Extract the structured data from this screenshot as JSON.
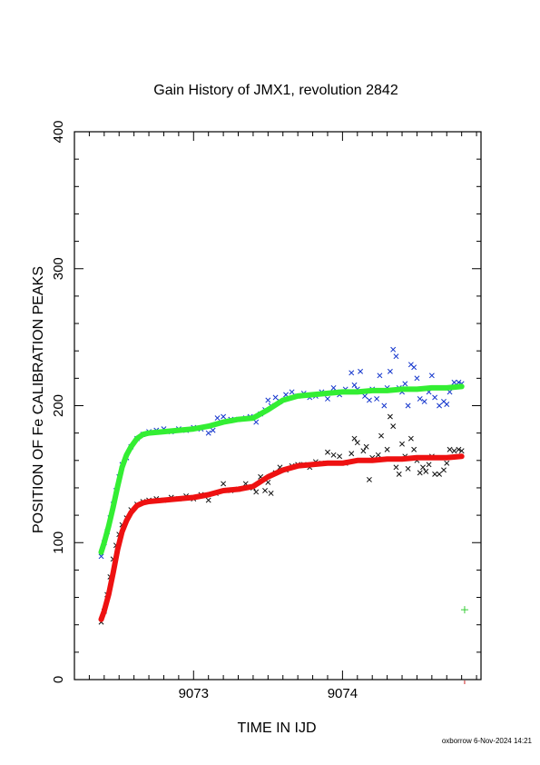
{
  "chart_data": {
    "type": "scatter",
    "title": "Gain History of JMX1, revolution 2842",
    "xlabel": "TIME IN IJD",
    "ylabel": "POSITION OF Fe CALIBRATION PEAKS",
    "footer": "oxborrow  6-Nov-2024 14:21",
    "xlim": [
      9072.2,
      9074.93
    ],
    "ylim": [
      0,
      400
    ],
    "x_ticks": [
      9073,
      9074
    ],
    "y_ticks": [
      0,
      100,
      200,
      300,
      400
    ],
    "colors": {
      "upper_fit": "#33ee33",
      "lower_fit": "#ee1111",
      "upper_points": "#1133cc",
      "lower_points": "#111111",
      "marker": "#33cc33",
      "tick_mark": "#cc2222"
    },
    "series": [
      {
        "role": "upper_points",
        "marker": "x",
        "points": [
          [
            9072.38,
            90
          ],
          [
            9072.4,
            100
          ],
          [
            9072.42,
            108
          ],
          [
            9072.44,
            118
          ],
          [
            9072.46,
            128
          ],
          [
            9072.48,
            138
          ],
          [
            9072.5,
            148
          ],
          [
            9072.52,
            157
          ],
          [
            9072.55,
            162
          ],
          [
            9072.58,
            170
          ],
          [
            9072.62,
            176
          ],
          [
            9072.66,
            179
          ],
          [
            9072.7,
            181
          ],
          [
            9072.75,
            182
          ],
          [
            9072.8,
            183
          ],
          [
            9072.85,
            181
          ],
          [
            9072.9,
            183
          ],
          [
            9072.95,
            182
          ],
          [
            9073.0,
            184
          ],
          [
            9073.05,
            183
          ],
          [
            9073.1,
            180
          ],
          [
            9073.13,
            182
          ],
          [
            9073.16,
            191
          ],
          [
            9073.2,
            192
          ],
          [
            9073.25,
            190
          ],
          [
            9073.3,
            190
          ],
          [
            9073.35,
            191
          ],
          [
            9073.38,
            192
          ],
          [
            9073.42,
            188
          ],
          [
            9073.45,
            194
          ],
          [
            9073.48,
            197
          ],
          [
            9073.5,
            204
          ],
          [
            9073.52,
            200
          ],
          [
            9073.55,
            206
          ],
          [
            9073.58,
            203
          ],
          [
            9073.62,
            208
          ],
          [
            9073.66,
            210
          ],
          [
            9073.7,
            207
          ],
          [
            9073.74,
            209
          ],
          [
            9073.78,
            206
          ],
          [
            9073.82,
            207
          ],
          [
            9073.86,
            210
          ],
          [
            9073.9,
            205
          ],
          [
            9073.94,
            213
          ],
          [
            9073.96,
            210
          ],
          [
            9073.98,
            208
          ],
          [
            9074.02,
            212
          ],
          [
            9074.06,
            224
          ],
          [
            9074.08,
            215
          ],
          [
            9074.1,
            212
          ],
          [
            9074.12,
            225
          ],
          [
            9074.15,
            207
          ],
          [
            9074.18,
            204
          ],
          [
            9074.2,
            212
          ],
          [
            9074.23,
            205
          ],
          [
            9074.25,
            222
          ],
          [
            9074.28,
            200
          ],
          [
            9074.3,
            213
          ],
          [
            9074.32,
            225
          ],
          [
            9074.34,
            241
          ],
          [
            9074.36,
            236
          ],
          [
            9074.38,
            213
          ],
          [
            9074.4,
            210
          ],
          [
            9074.42,
            216
          ],
          [
            9074.44,
            200
          ],
          [
            9074.46,
            230
          ],
          [
            9074.48,
            228
          ],
          [
            9074.5,
            220
          ],
          [
            9074.52,
            205
          ],
          [
            9074.55,
            203
          ],
          [
            9074.58,
            210
          ],
          [
            9074.6,
            222
          ],
          [
            9074.62,
            206
          ],
          [
            9074.65,
            200
          ],
          [
            9074.68,
            203
          ],
          [
            9074.7,
            201
          ],
          [
            9074.72,
            210
          ],
          [
            9074.75,
            217
          ],
          [
            9074.78,
            217
          ],
          [
            9074.8,
            216
          ]
        ]
      },
      {
        "role": "lower_points",
        "marker": "x",
        "points": [
          [
            9072.38,
            42
          ],
          [
            9072.4,
            50
          ],
          [
            9072.42,
            62
          ],
          [
            9072.44,
            75
          ],
          [
            9072.46,
            88
          ],
          [
            9072.48,
            98
          ],
          [
            9072.5,
            106
          ],
          [
            9072.52,
            113
          ],
          [
            9072.55,
            118
          ],
          [
            9072.58,
            124
          ],
          [
            9072.62,
            128
          ],
          [
            9072.66,
            130
          ],
          [
            9072.7,
            131
          ],
          [
            9072.75,
            132
          ],
          [
            9072.8,
            131
          ],
          [
            9072.85,
            133
          ],
          [
            9072.9,
            132
          ],
          [
            9072.95,
            134
          ],
          [
            9073.0,
            132
          ],
          [
            9073.05,
            135
          ],
          [
            9073.1,
            131
          ],
          [
            9073.15,
            136
          ],
          [
            9073.2,
            143
          ],
          [
            9073.25,
            138
          ],
          [
            9073.3,
            139
          ],
          [
            9073.35,
            143
          ],
          [
            9073.4,
            140
          ],
          [
            9073.42,
            137
          ],
          [
            9073.45,
            148
          ],
          [
            9073.48,
            138
          ],
          [
            9073.5,
            144
          ],
          [
            9073.52,
            136
          ],
          [
            9073.55,
            151
          ],
          [
            9073.58,
            155
          ],
          [
            9073.62,
            153
          ],
          [
            9073.66,
            156
          ],
          [
            9073.7,
            157
          ],
          [
            9073.74,
            157
          ],
          [
            9073.78,
            155
          ],
          [
            9073.82,
            159
          ],
          [
            9073.86,
            158
          ],
          [
            9073.9,
            166
          ],
          [
            9073.94,
            164
          ],
          [
            9073.98,
            163
          ],
          [
            9074.02,
            158
          ],
          [
            9074.06,
            165
          ],
          [
            9074.08,
            176
          ],
          [
            9074.1,
            173
          ],
          [
            9074.14,
            167
          ],
          [
            9074.16,
            170
          ],
          [
            9074.18,
            146
          ],
          [
            9074.2,
            162
          ],
          [
            9074.24,
            164
          ],
          [
            9074.26,
            178
          ],
          [
            9074.3,
            168
          ],
          [
            9074.32,
            192
          ],
          [
            9074.34,
            185
          ],
          [
            9074.36,
            155
          ],
          [
            9074.38,
            150
          ],
          [
            9074.4,
            172
          ],
          [
            9074.42,
            163
          ],
          [
            9074.44,
            154
          ],
          [
            9074.46,
            176
          ],
          [
            9074.48,
            168
          ],
          [
            9074.5,
            160
          ],
          [
            9074.52,
            151
          ],
          [
            9074.54,
            155
          ],
          [
            9074.56,
            152
          ],
          [
            9074.58,
            157
          ],
          [
            9074.6,
            163
          ],
          [
            9074.62,
            150
          ],
          [
            9074.65,
            150
          ],
          [
            9074.68,
            153
          ],
          [
            9074.7,
            158
          ],
          [
            9074.72,
            168
          ],
          [
            9074.75,
            167
          ],
          [
            9074.78,
            168
          ],
          [
            9074.8,
            167
          ]
        ]
      },
      {
        "role": "upper_fit",
        "line": true,
        "points": [
          [
            9072.38,
            93
          ],
          [
            9072.4,
            100
          ],
          [
            9072.43,
            112
          ],
          [
            9072.46,
            126
          ],
          [
            9072.49,
            141
          ],
          [
            9072.52,
            155
          ],
          [
            9072.55,
            164
          ],
          [
            9072.58,
            170
          ],
          [
            9072.62,
            176
          ],
          [
            9072.66,
            179
          ],
          [
            9072.7,
            180
          ],
          [
            9072.8,
            181
          ],
          [
            9072.9,
            182
          ],
          [
            9073.0,
            183
          ],
          [
            9073.1,
            185
          ],
          [
            9073.2,
            188
          ],
          [
            9073.3,
            190
          ],
          [
            9073.4,
            191
          ],
          [
            9073.5,
            197
          ],
          [
            9073.6,
            204
          ],
          [
            9073.7,
            207
          ],
          [
            9073.8,
            208
          ],
          [
            9073.9,
            209
          ],
          [
            9074.0,
            210
          ],
          [
            9074.1,
            210
          ],
          [
            9074.2,
            211
          ],
          [
            9074.3,
            211
          ],
          [
            9074.4,
            212
          ],
          [
            9074.5,
            212
          ],
          [
            9074.6,
            213
          ],
          [
            9074.7,
            213
          ],
          [
            9074.8,
            214
          ]
        ]
      },
      {
        "role": "lower_fit",
        "line": true,
        "points": [
          [
            9072.38,
            44
          ],
          [
            9072.4,
            50
          ],
          [
            9072.43,
            62
          ],
          [
            9072.46,
            78
          ],
          [
            9072.49,
            95
          ],
          [
            9072.52,
            108
          ],
          [
            9072.55,
            116
          ],
          [
            9072.58,
            122
          ],
          [
            9072.62,
            127
          ],
          [
            9072.66,
            129
          ],
          [
            9072.7,
            130
          ],
          [
            9072.8,
            131
          ],
          [
            9072.9,
            132
          ],
          [
            9073.0,
            133
          ],
          [
            9073.1,
            135
          ],
          [
            9073.2,
            138
          ],
          [
            9073.3,
            139
          ],
          [
            9073.4,
            141
          ],
          [
            9073.5,
            148
          ],
          [
            9073.6,
            153
          ],
          [
            9073.7,
            156
          ],
          [
            9073.8,
            157
          ],
          [
            9073.9,
            158
          ],
          [
            9074.0,
            158
          ],
          [
            9074.1,
            160
          ],
          [
            9074.2,
            160
          ],
          [
            9074.3,
            161
          ],
          [
            9074.4,
            161
          ],
          [
            9074.5,
            162
          ],
          [
            9074.6,
            162
          ],
          [
            9074.7,
            162
          ],
          [
            9074.8,
            163
          ]
        ]
      },
      {
        "role": "marker",
        "marker": "+",
        "points": [
          [
            9074.82,
            51
          ]
        ]
      }
    ]
  }
}
